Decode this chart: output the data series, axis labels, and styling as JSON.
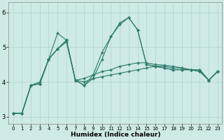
{
  "title": "",
  "xlabel": "Humidex (Indice chaleur)",
  "ylabel": "",
  "bg_color": "#ceeae6",
  "grid_color": "#aed4cf",
  "line_color": "#2a7a6a",
  "xlim": [
    -0.5,
    23.5
  ],
  "ylim": [
    2.8,
    6.3
  ],
  "yticks": [
    3,
    4,
    5,
    6
  ],
  "xticks": [
    0,
    1,
    2,
    3,
    4,
    5,
    6,
    7,
    8,
    9,
    10,
    11,
    12,
    13,
    14,
    15,
    16,
    17,
    18,
    19,
    20,
    21,
    22,
    23
  ],
  "line1_x": [
    0,
    1,
    2,
    3,
    4,
    5,
    6,
    7,
    8,
    9,
    10,
    11,
    12,
    13,
    14,
    15,
    16,
    17,
    18,
    19,
    20,
    21,
    22,
    23
  ],
  "line1_y": [
    3.1,
    3.1,
    3.9,
    3.95,
    4.65,
    5.4,
    5.2,
    4.05,
    4.0,
    4.1,
    4.15,
    4.2,
    4.25,
    4.3,
    4.35,
    4.4,
    4.45,
    4.45,
    4.4,
    4.4,
    4.35,
    4.3,
    4.05,
    4.3
  ],
  "line2_x": [
    0,
    1,
    2,
    3,
    4,
    5,
    6,
    7,
    8,
    9,
    10,
    11,
    12,
    13,
    14,
    15,
    16,
    17,
    18,
    19,
    20,
    21,
    22,
    23
  ],
  "line2_y": [
    3.1,
    3.1,
    3.9,
    3.95,
    4.65,
    4.95,
    5.15,
    4.05,
    3.9,
    4.2,
    4.85,
    5.3,
    5.7,
    5.85,
    5.5,
    4.5,
    4.45,
    4.4,
    4.35,
    4.35,
    4.35,
    4.35,
    4.05,
    4.3
  ],
  "line3_x": [
    0,
    1,
    2,
    3,
    4,
    5,
    6,
    7,
    8,
    9,
    10,
    11,
    12,
    13,
    14,
    15,
    16,
    17,
    18,
    19,
    20,
    21,
    22,
    23
  ],
  "line3_y": [
    3.1,
    3.1,
    3.9,
    3.95,
    4.65,
    4.95,
    5.2,
    4.05,
    4.1,
    4.2,
    4.3,
    4.35,
    4.45,
    4.5,
    4.55,
    4.55,
    4.5,
    4.48,
    4.45,
    4.4,
    4.35,
    4.3,
    4.05,
    4.3
  ],
  "line4_x": [
    0,
    1,
    2,
    3,
    4,
    5,
    6,
    7,
    8,
    9,
    10,
    11,
    12,
    13,
    14,
    15,
    16,
    17,
    18,
    19,
    20,
    21,
    22,
    23
  ],
  "line4_y": [
    3.1,
    3.1,
    3.9,
    4.0,
    4.65,
    4.95,
    5.2,
    4.05,
    3.9,
    4.1,
    4.65,
    5.3,
    5.65,
    5.85,
    5.5,
    4.5,
    4.45,
    4.4,
    4.35,
    4.35,
    4.35,
    4.35,
    4.05,
    4.3
  ]
}
